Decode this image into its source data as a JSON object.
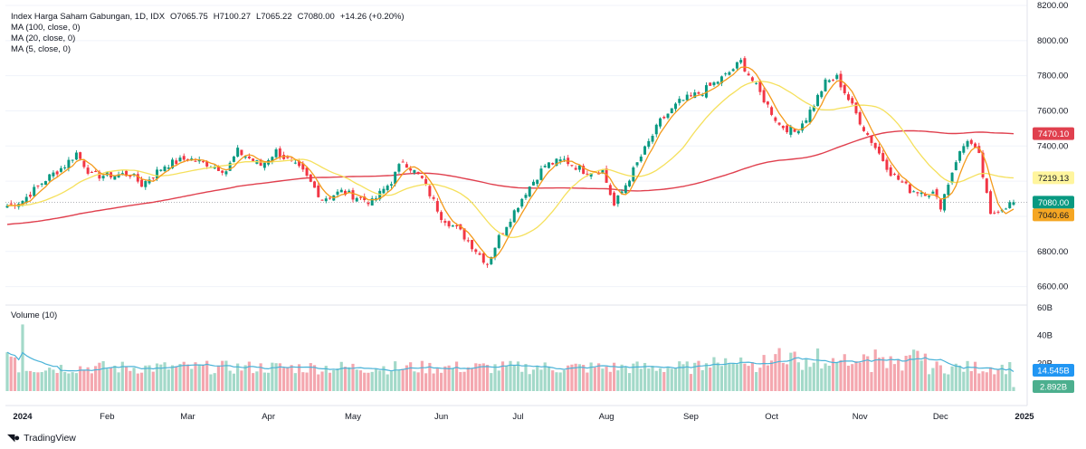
{
  "legend": {
    "symbol": "Index Harga Saham Gabungan, 1D, IDX",
    "open": "O7065.75",
    "high": "H7100.27",
    "low": "L7065.22",
    "close": "C7080.00",
    "change": "+14.26 (+0.20%)",
    "ma100": "MA (100, close, 0)",
    "ma20": "MA (20, close, 0)",
    "ma5": "MA (5, close, 0)",
    "volume": "Volume (10)"
  },
  "price_axis": [
    "8200.00",
    "8000.00",
    "7800.00",
    "7600.00",
    "7400.00",
    "7200.00",
    "7000.00",
    "6800.00",
    "6600.00"
  ],
  "volume_axis": [
    "60B",
    "40B",
    "20B"
  ],
  "badges": {
    "ma100": "7470.10",
    "ma20": "7219.13",
    "last": "7080.00",
    "ma5": "7040.66",
    "vol_ma": "14.545B",
    "vol": "2.892B"
  },
  "x_labels": [
    "2024",
    "Feb",
    "Mar",
    "Apr",
    "May",
    "Jun",
    "Jul",
    "Aug",
    "Sep",
    "Oct",
    "Nov",
    "Dec",
    "2025"
  ],
  "brand": "TradingView",
  "colors": {
    "up": "#089981",
    "down": "#f23645",
    "ma100": "#e0404e",
    "ma20": "#f5e05c",
    "ma5": "#f49a1b",
    "vol_up": "#a3d9c9",
    "vol_down": "#f4a7af",
    "vol_ma": "#4ab3d8"
  },
  "chart_data": {
    "type": "candlestick",
    "title": "Index Harga Saham Gabungan, 1D, IDX",
    "ylim": [
      6500,
      8200
    ],
    "anchors": [
      {
        "date": "2024-01-02",
        "close": 7090
      },
      {
        "date": "2024-01-10",
        "close": 7210
      },
      {
        "date": "2024-01-17",
        "close": 7290
      },
      {
        "date": "2024-01-22",
        "close": 7360
      },
      {
        "date": "2024-01-26",
        "close": 7230
      },
      {
        "date": "2024-02-09",
        "close": 7240
      },
      {
        "date": "2024-02-14",
        "close": 7180
      },
      {
        "date": "2024-02-22",
        "close": 7290
      },
      {
        "date": "2024-03-01",
        "close": 7330
      },
      {
        "date": "2024-03-08",
        "close": 7300
      },
      {
        "date": "2024-03-15",
        "close": 7260
      },
      {
        "date": "2024-03-20",
        "close": 7370
      },
      {
        "date": "2024-03-28",
        "close": 7290
      },
      {
        "date": "2024-04-03",
        "close": 7370
      },
      {
        "date": "2024-04-12",
        "close": 7250
      },
      {
        "date": "2024-04-19",
        "close": 7100
      },
      {
        "date": "2024-04-26",
        "close": 7140
      },
      {
        "date": "2024-05-08",
        "close": 7080
      },
      {
        "date": "2024-05-15",
        "close": 7200
      },
      {
        "date": "2024-05-20",
        "close": 7320
      },
      {
        "date": "2024-05-27",
        "close": 7210
      },
      {
        "date": "2024-06-03",
        "close": 7000
      },
      {
        "date": "2024-06-10",
        "close": 6910
      },
      {
        "date": "2024-06-19",
        "close": 6730
      },
      {
        "date": "2024-06-24",
        "close": 6880
      },
      {
        "date": "2024-07-03",
        "close": 7140
      },
      {
        "date": "2024-07-10",
        "close": 7290
      },
      {
        "date": "2024-07-17",
        "close": 7320
      },
      {
        "date": "2024-07-24",
        "close": 7260
      },
      {
        "date": "2024-07-31",
        "close": 7260
      },
      {
        "date": "2024-08-05",
        "close": 7060
      },
      {
        "date": "2024-08-12",
        "close": 7260
      },
      {
        "date": "2024-08-21",
        "close": 7540
      },
      {
        "date": "2024-08-28",
        "close": 7650
      },
      {
        "date": "2024-09-05",
        "close": 7710
      },
      {
        "date": "2024-09-13",
        "close": 7800
      },
      {
        "date": "2024-09-19",
        "close": 7880
      },
      {
        "date": "2024-09-26",
        "close": 7700
      },
      {
        "date": "2024-10-03",
        "close": 7520
      },
      {
        "date": "2024-10-09",
        "close": 7480
      },
      {
        "date": "2024-10-14",
        "close": 7560
      },
      {
        "date": "2024-10-21",
        "close": 7760
      },
      {
        "date": "2024-10-24",
        "close": 7790
      },
      {
        "date": "2024-11-04",
        "close": 7500
      },
      {
        "date": "2024-11-13",
        "close": 7250
      },
      {
        "date": "2024-11-20",
        "close": 7150
      },
      {
        "date": "2024-11-28",
        "close": 7130
      },
      {
        "date": "2024-12-02",
        "close": 7060
      },
      {
        "date": "2024-12-06",
        "close": 7320
      },
      {
        "date": "2024-12-11",
        "close": 7440
      },
      {
        "date": "2024-12-16",
        "close": 7340
      },
      {
        "date": "2024-12-19",
        "close": 7000
      },
      {
        "date": "2024-12-23",
        "close": 7040
      },
      {
        "date": "2024-12-27",
        "close": 7080
      }
    ],
    "volume": {
      "ylim": [
        0,
        60
      ],
      "unit": "B",
      "description_values": [
        23,
        25,
        30,
        22,
        18,
        16,
        15,
        16,
        15,
        17,
        14,
        16,
        17,
        18,
        20,
        16,
        15,
        17,
        22,
        17,
        16,
        15,
        14,
        18,
        20,
        16,
        14,
        16,
        19,
        22,
        24,
        28,
        30,
        26,
        22,
        20,
        24,
        23,
        20,
        18,
        22,
        24,
        20,
        18,
        16,
        22,
        24,
        18,
        17,
        23,
        20,
        3
      ]
    },
    "last": {
      "open": 7065.75,
      "high": 7100.27,
      "low": 7065.22,
      "close": 7080.0,
      "change": 14.26,
      "change_pct": 0.2
    },
    "ma_last": {
      "ma100": 7470.1,
      "ma20": 7219.13,
      "ma5": 7040.66
    },
    "volume_last": {
      "ma10": "14.545B",
      "volume": "2.892B"
    },
    "x_ticks": [
      "2024",
      "Feb",
      "Mar",
      "Apr",
      "May",
      "Jun",
      "Jul",
      "Aug",
      "Sep",
      "Oct",
      "Nov",
      "Dec",
      "2025"
    ],
    "y_ticks": [
      8200,
      8000,
      7800,
      7600,
      7400,
      7200,
      7000,
      6800,
      6600
    ]
  }
}
